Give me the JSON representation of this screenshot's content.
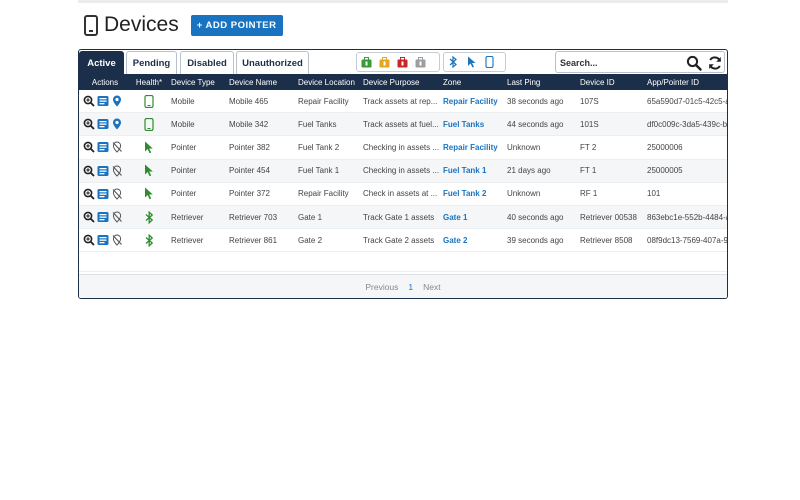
{
  "header": {
    "title": "Devices",
    "add_button": "+ ADD POINTER"
  },
  "tabs": [
    {
      "label": "Active",
      "active": true
    },
    {
      "label": "Pending",
      "active": false
    },
    {
      "label": "Disabled",
      "active": false
    },
    {
      "label": "Unauthorized",
      "active": false
    }
  ],
  "filter_icons": {
    "status_colors": [
      "#3a9a3a",
      "#e3a823",
      "#c62828",
      "#9e9e9e"
    ],
    "types": [
      "bluetooth-icon",
      "cursor-icon",
      "mobile-icon"
    ]
  },
  "search": {
    "placeholder": "Search..."
  },
  "columns": [
    "Actions",
    "Health*",
    "Device Type",
    "Device Name",
    "Device Location",
    "Device Purpose",
    "Zone",
    "Last Ping",
    "Device ID",
    "App/Pointer ID"
  ],
  "rows": [
    {
      "type": "Mobile",
      "name": "Mobile 465",
      "location": "Repair Facility",
      "purpose": "Track assets at rep...",
      "zone": "Repair Facility",
      "ping": "38 seconds ago",
      "device_id": "107S",
      "app_id": "65a590d7-01c5-42c5-a",
      "health_icon": "mobile-icon",
      "pin_icon": "location-pin-icon"
    },
    {
      "type": "Mobile",
      "name": "Mobile 342",
      "location": "Fuel Tanks",
      "purpose": "Track assets at fuel...",
      "zone": "Fuel Tanks",
      "ping": "44 seconds ago",
      "device_id": "101S",
      "app_id": "df0c009c-3da5-439c-b",
      "health_icon": "mobile-icon",
      "pin_icon": "location-pin-icon"
    },
    {
      "type": "Pointer",
      "name": "Pointer 382",
      "location": "Fuel Tank 2",
      "purpose": "Checking in assets ...",
      "zone": "Repair Facility",
      "ping": "Unknown",
      "device_id": "FT 2",
      "app_id": "25000006",
      "health_icon": "cursor-icon",
      "pin_icon": "location-off-icon"
    },
    {
      "type": "Pointer",
      "name": "Pointer 454",
      "location": "Fuel Tank 1",
      "purpose": "Checking in assets ...",
      "zone": "Fuel Tank 1",
      "ping": "21 days ago",
      "device_id": "FT 1",
      "app_id": "25000005",
      "health_icon": "cursor-icon",
      "pin_icon": "location-off-icon"
    },
    {
      "type": "Pointer",
      "name": "Pointer 372",
      "location": "Repair Facility",
      "purpose": "Check in assets at ...",
      "zone": "Fuel Tank 2",
      "ping": "Unknown",
      "device_id": "RF 1",
      "app_id": "101",
      "health_icon": "cursor-icon",
      "pin_icon": "location-off-icon"
    },
    {
      "type": "Retriever",
      "name": "Retriever 703",
      "location": "Gate 1",
      "purpose": "Track Gate 1 assets",
      "zone": "Gate 1",
      "ping": "40 seconds ago",
      "device_id": "Retriever 00538",
      "app_id": "863ebc1e-552b-4484-a",
      "health_icon": "bluetooth-icon",
      "pin_icon": "location-off-icon"
    },
    {
      "type": "Retriever",
      "name": "Retriever 861",
      "location": "Gate 2",
      "purpose": "Track Gate 2 assets",
      "zone": "Gate 2",
      "ping": "39 seconds ago",
      "device_id": "Retriever 8508",
      "app_id": "08f9dc13-7569-407a-9",
      "health_icon": "bluetooth-icon",
      "pin_icon": "location-off-icon"
    }
  ],
  "pagination": {
    "previous": "Previous",
    "current": "1",
    "next": "Next"
  },
  "colors": {
    "navy": "#1c2f4a",
    "accent": "#1a73c0",
    "health_green": "#2e8b2e"
  }
}
